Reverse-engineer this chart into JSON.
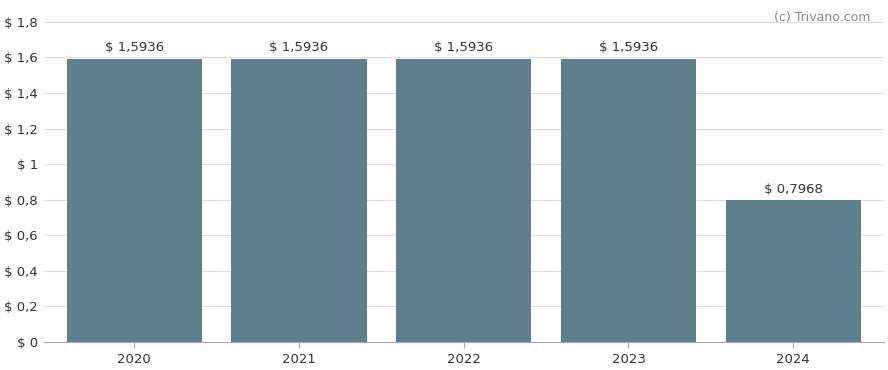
{
  "categories": [
    2020,
    2021,
    2022,
    2023,
    2024
  ],
  "values": [
    1.5936,
    1.5936,
    1.5936,
    1.5936,
    0.7968
  ],
  "bar_color": "#5f7f8f",
  "bar_labels": [
    "$ 1,5936",
    "$ 1,5936",
    "$ 1,5936",
    "$ 1,5936",
    "$ 0,7968"
  ],
  "ytick_labels": [
    "$ 0",
    "$ 0,2",
    "$ 0,4",
    "$ 0,6",
    "$ 0,8",
    "$ 1",
    "$ 1,2",
    "$ 1,4",
    "$ 1,6",
    "$ 1,8"
  ],
  "ytick_values": [
    0,
    0.2,
    0.4,
    0.6,
    0.8,
    1.0,
    1.2,
    1.4,
    1.6,
    1.8
  ],
  "ylim": [
    0,
    1.9
  ],
  "background_color": "#ffffff",
  "watermark": "(c) Trivano.com",
  "watermark_color": "#888888",
  "grid_color": "#dddddd",
  "bar_label_color": "#333333",
  "bar_label_fontsize": 9.5,
  "watermark_fontsize": 9,
  "tick_fontsize": 9.5,
  "figsize": [
    8.88,
    3.7
  ],
  "dpi": 100,
  "bar_width": 0.82
}
